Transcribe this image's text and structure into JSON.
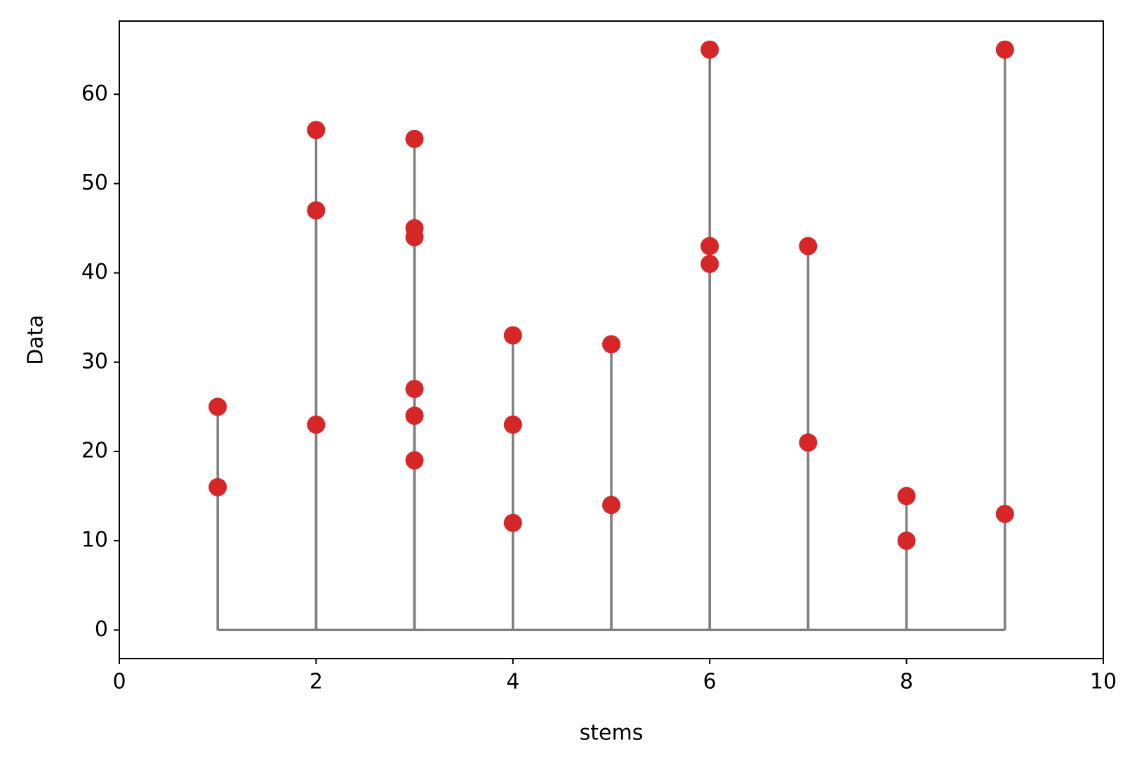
{
  "chart_data": {
    "type": "stem",
    "x": [
      1,
      1,
      2,
      2,
      2,
      3,
      3,
      3,
      3,
      3,
      3,
      4,
      4,
      4,
      5,
      5,
      6,
      6,
      6,
      7,
      7,
      8,
      8,
      9,
      9
    ],
    "values": [
      25,
      16,
      56,
      47,
      23,
      55,
      45,
      44,
      27,
      24,
      19,
      33,
      23,
      12,
      32,
      14,
      65,
      43,
      41,
      43,
      21,
      15,
      10,
      65,
      13
    ],
    "color": "#d62728",
    "stem_color": "#808080",
    "xlabel": "stems",
    "ylabel": "Data",
    "xlim": [
      0,
      10
    ],
    "xticks": [
      0,
      2,
      4,
      6,
      8,
      10
    ],
    "ylim": [
      -3.2,
      68.2
    ],
    "yticks": [
      0,
      10,
      20,
      30,
      40,
      50,
      60
    ],
    "grid": false
  }
}
